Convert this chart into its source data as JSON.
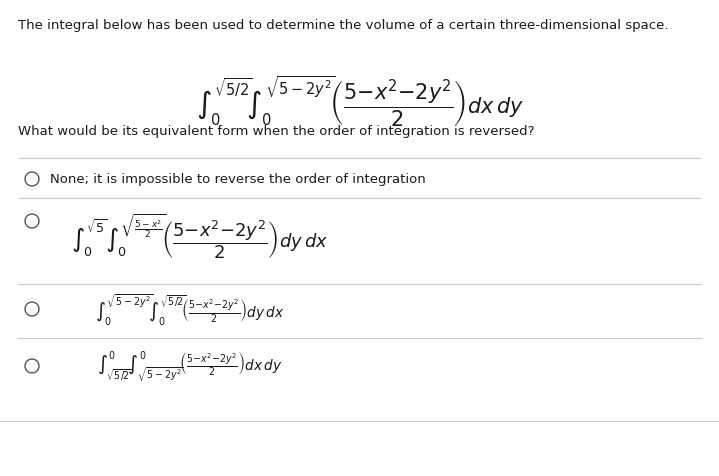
{
  "background_color": "#ffffff",
  "title_text": "The integral below has been used to determine the volume of a certain three-dimensional space.",
  "question_text": "What would be its equivalent form when the order of integration is reversed?",
  "text_color": "#1a1a1a",
  "line_color": "#cccccc",
  "circle_color": "#555555",
  "title_fontsize": 9.5,
  "question_fontsize": 9.5,
  "main_integral_fontsize": 15,
  "option1_fontsize": 9.5,
  "option2_integral_fontsize": 13,
  "option3_integral_fontsize": 9.8,
  "option4_integral_fontsize": 9.8
}
